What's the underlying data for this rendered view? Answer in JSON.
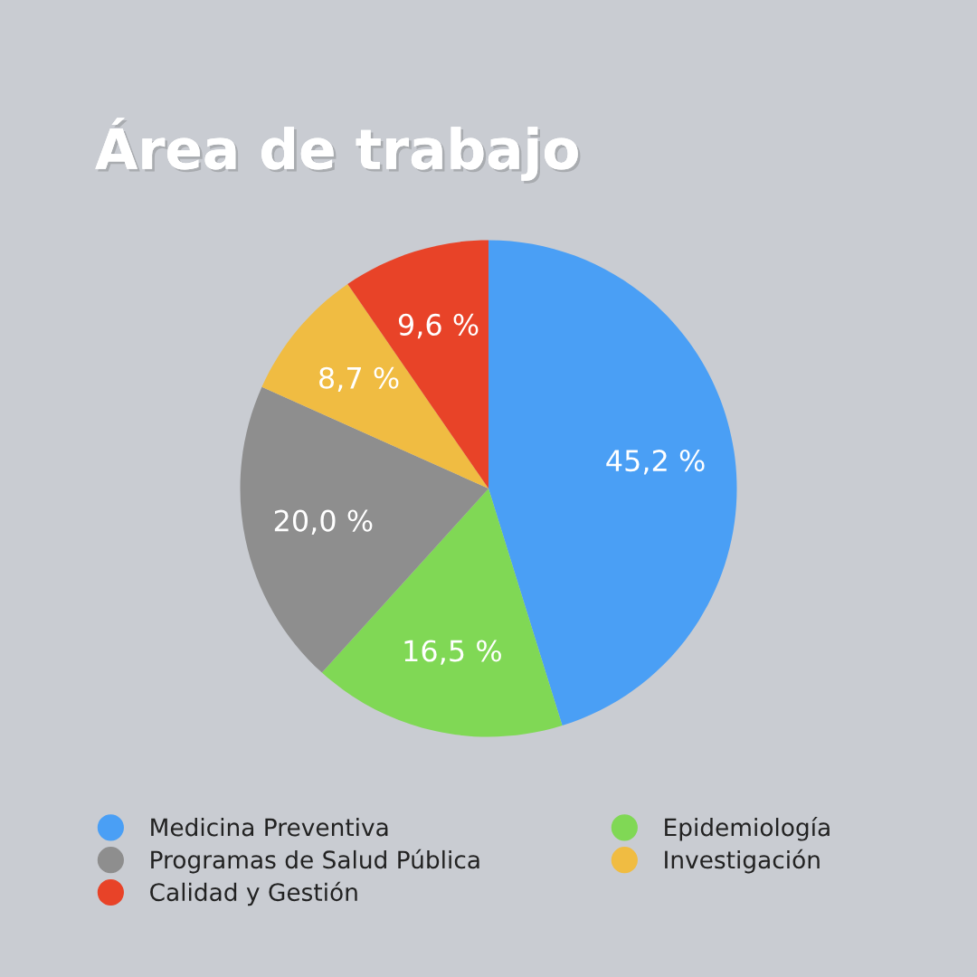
{
  "chart_data": {
    "type": "pie",
    "title": "Área de trabajo",
    "categories": [
      "Medicina Preventiva",
      "Epidemiología",
      "Programas de Salud Pública",
      "Investigación",
      "Calidad y Gestión"
    ],
    "values": [
      45.2,
      16.5,
      20.0,
      8.7,
      9.6
    ],
    "value_labels": [
      "45,2 %",
      "16,5 %",
      "20,0 %",
      "8,7 %",
      "9,6 %"
    ],
    "colors": [
      "#4a9ff5",
      "#80d855",
      "#8e8e8e",
      "#f0bc42",
      "#e84328"
    ],
    "legend": "bottom"
  }
}
